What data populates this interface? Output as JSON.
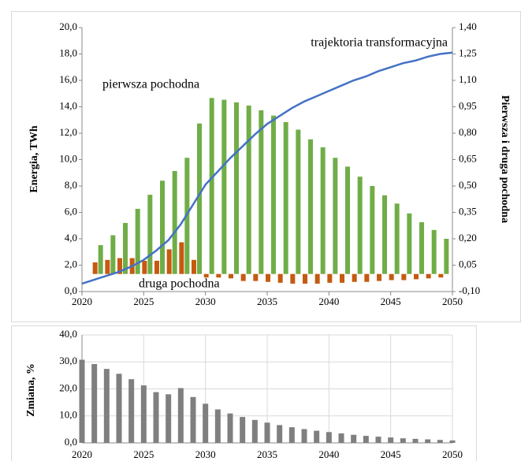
{
  "chart_data": [
    {
      "type": "combo",
      "ylabel": "Energia, TWh",
      "y2label": "Pierwsza i druga pochodna",
      "annotations": [
        "trajektoria transformacyjna",
        "pierwsza pochodna",
        "druga pochodna"
      ],
      "x": [
        2020,
        2021,
        2022,
        2023,
        2024,
        2025,
        2026,
        2027,
        2028,
        2029,
        2030,
        2031,
        2032,
        2033,
        2034,
        2035,
        2036,
        2037,
        2038,
        2039,
        2040,
        2041,
        2042,
        2043,
        2044,
        2045,
        2046,
        2047,
        2048,
        2049,
        2050
      ],
      "xlim": [
        2020,
        2050
      ],
      "xticks": [
        2020,
        2025,
        2030,
        2035,
        2040,
        2045,
        2050
      ],
      "ylim": [
        0,
        20
      ],
      "yticks": [
        {
          "value": 0,
          "label": "0,0"
        },
        {
          "value": 2,
          "label": "2,0"
        },
        {
          "value": 4,
          "label": "4,0"
        },
        {
          "value": 6,
          "label": "6,0"
        },
        {
          "value": 8,
          "label": "8,0"
        },
        {
          "value": 10,
          "label": "10,0"
        },
        {
          "value": 12,
          "label": "12,0"
        },
        {
          "value": 14,
          "label": "14,0"
        },
        {
          "value": 16,
          "label": "16,0"
        },
        {
          "value": 18,
          "label": "18,0"
        },
        {
          "value": 20,
          "label": "20,0"
        }
      ],
      "y2lim": [
        -0.1,
        1.4
      ],
      "y2ticks": [
        {
          "value": -0.1,
          "label": "-0,10"
        },
        {
          "value": 0.05,
          "label": "0,05"
        },
        {
          "value": 0.2,
          "label": "0,20"
        },
        {
          "value": 0.35,
          "label": "0,35"
        },
        {
          "value": 0.5,
          "label": "0,50"
        },
        {
          "value": 0.65,
          "label": "0,65"
        },
        {
          "value": 0.8,
          "label": "0,80"
        },
        {
          "value": 0.95,
          "label": "0,95"
        },
        {
          "value": 1.1,
          "label": "1,10"
        },
        {
          "value": 1.25,
          "label": "1,25"
        },
        {
          "value": 1.4,
          "label": "1,40"
        }
      ],
      "grid": false,
      "series": [
        {
          "kind": "bar",
          "axis": "y2",
          "color": "#c55a11",
          "values": [
            null,
            0.066,
            0.08,
            0.09,
            0.09,
            0.075,
            0.075,
            0.14,
            0.18,
            0.08,
            -0.02,
            -0.02,
            -0.025,
            -0.04,
            -0.04,
            -0.045,
            -0.05,
            -0.055,
            -0.055,
            -0.055,
            -0.05,
            -0.05,
            -0.045,
            -0.045,
            -0.04,
            -0.035,
            -0.035,
            -0.03,
            -0.025,
            -0.02,
            null
          ]
        },
        {
          "kind": "bar",
          "axis": "y2",
          "color": "#70ad47",
          "values": [
            null,
            0.164,
            0.22,
            0.29,
            0.37,
            0.45,
            0.53,
            0.585,
            0.66,
            0.855,
            1.0,
            0.99,
            0.975,
            0.957,
            0.93,
            0.9,
            0.863,
            0.82,
            0.765,
            0.72,
            0.66,
            0.61,
            0.553,
            0.5,
            0.447,
            0.4,
            0.344,
            0.294,
            0.25,
            0.2,
            null
          ]
        },
        {
          "kind": "line",
          "color": "#4472c4",
          "values": [
            0.6,
            0.9,
            1.2,
            1.5,
            1.9,
            2.4,
            3.1,
            3.9,
            5.1,
            6.6,
            8.1,
            9.1,
            10.1,
            11.0,
            11.9,
            12.7,
            13.3,
            13.9,
            14.4,
            14.8,
            15.2,
            15.6,
            16.0,
            16.3,
            16.7,
            17.0,
            17.3,
            17.5,
            17.8,
            18.0,
            18.1
          ]
        }
      ]
    },
    {
      "type": "bar",
      "ylabel": "Zmiana, %",
      "x": [
        2020,
        2021,
        2022,
        2023,
        2024,
        2025,
        2026,
        2027,
        2028,
        2029,
        2030,
        2031,
        2032,
        2033,
        2034,
        2035,
        2036,
        2037,
        2038,
        2039,
        2040,
        2041,
        2042,
        2043,
        2044,
        2045,
        2046,
        2047,
        2048,
        2049,
        2050
      ],
      "values": [
        30.8,
        29.2,
        27.4,
        25.6,
        23.6,
        21.3,
        18.8,
        18.0,
        20.3,
        17.0,
        14.5,
        12.4,
        10.9,
        9.6,
        8.5,
        7.5,
        6.6,
        5.8,
        5.1,
        4.5,
        4.0,
        3.5,
        3.0,
        2.6,
        2.3,
        2.0,
        1.7,
        1.5,
        1.3,
        1.1,
        0.9
      ],
      "color": "#7f7f7f",
      "xlim": [
        2020,
        2050
      ],
      "xticks": [
        2020,
        2025,
        2030,
        2035,
        2040,
        2045,
        2050
      ],
      "ylim": [
        0,
        40
      ],
      "yticks": [
        {
          "value": 0,
          "label": "0,0"
        },
        {
          "value": 10,
          "label": "10,0"
        },
        {
          "value": 20,
          "label": "20,0"
        },
        {
          "value": 30,
          "label": "30,0"
        },
        {
          "value": 40,
          "label": "40,0"
        }
      ],
      "grid": true
    }
  ]
}
